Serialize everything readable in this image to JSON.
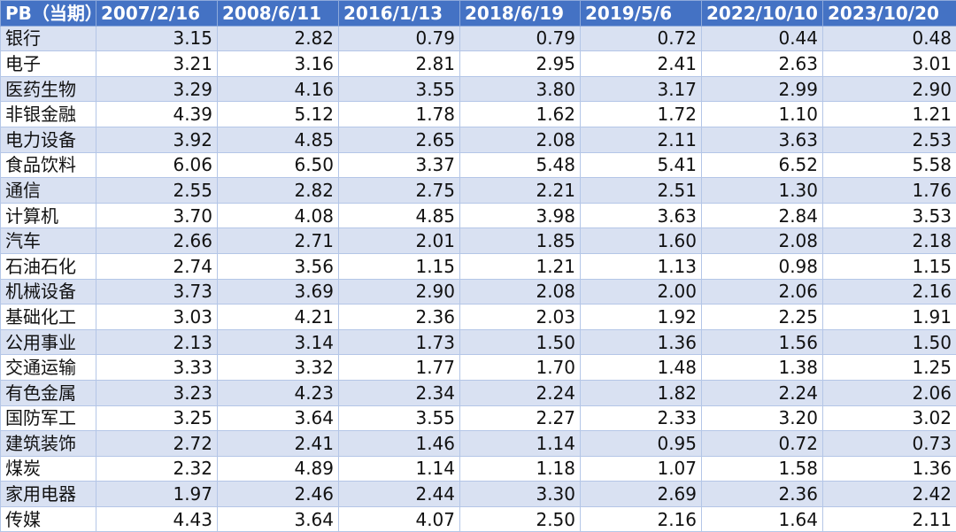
{
  "table": {
    "header": [
      "PB（当期）",
      "2007/2/16",
      "2008/6/11",
      "2016/1/13",
      "2018/6/19",
      "2019/5/6",
      "2022/10/10",
      "2023/10/20"
    ],
    "rows": [
      [
        "银行",
        "3.15",
        "2.82",
        "0.79",
        "0.79",
        "0.72",
        "0.44",
        "0.48"
      ],
      [
        "电子",
        "3.21",
        "3.16",
        "2.81",
        "2.95",
        "2.41",
        "2.63",
        "3.01"
      ],
      [
        "医药生物",
        "3.29",
        "4.16",
        "3.55",
        "3.80",
        "3.17",
        "2.99",
        "2.90"
      ],
      [
        "非银金融",
        "4.39",
        "5.12",
        "1.78",
        "1.62",
        "1.72",
        "1.10",
        "1.21"
      ],
      [
        "电力设备",
        "3.92",
        "4.85",
        "2.65",
        "2.08",
        "2.11",
        "3.63",
        "2.53"
      ],
      [
        "食品饮料",
        "6.06",
        "6.50",
        "3.37",
        "5.48",
        "5.41",
        "6.52",
        "5.58"
      ],
      [
        "通信",
        "2.55",
        "2.82",
        "2.75",
        "2.21",
        "2.51",
        "1.30",
        "1.76"
      ],
      [
        "计算机",
        "3.70",
        "4.08",
        "4.85",
        "3.98",
        "3.63",
        "2.84",
        "3.53"
      ],
      [
        "汽车",
        "2.66",
        "2.71",
        "2.01",
        "1.85",
        "1.60",
        "2.08",
        "2.18"
      ],
      [
        "石油石化",
        "2.74",
        "3.56",
        "1.15",
        "1.21",
        "1.13",
        "0.98",
        "1.15"
      ],
      [
        "机械设备",
        "3.73",
        "3.69",
        "2.90",
        "2.08",
        "2.00",
        "2.06",
        "2.16"
      ],
      [
        "基础化工",
        "3.03",
        "4.21",
        "2.36",
        "2.03",
        "1.92",
        "2.25",
        "1.91"
      ],
      [
        "公用事业",
        "2.13",
        "3.14",
        "1.73",
        "1.50",
        "1.36",
        "1.56",
        "1.50"
      ],
      [
        "交通运输",
        "3.33",
        "3.32",
        "1.77",
        "1.70",
        "1.48",
        "1.38",
        "1.25"
      ],
      [
        "有色金属",
        "3.23",
        "4.23",
        "2.34",
        "2.24",
        "1.82",
        "2.24",
        "2.06"
      ],
      [
        "国防军工",
        "3.25",
        "3.64",
        "3.55",
        "2.27",
        "2.33",
        "3.20",
        "3.02"
      ],
      [
        "建筑装饰",
        "2.72",
        "2.41",
        "1.46",
        "1.14",
        "0.95",
        "0.72",
        "0.73"
      ],
      [
        "煤炭",
        "2.32",
        "4.89",
        "1.14",
        "1.18",
        "1.07",
        "1.58",
        "1.36"
      ],
      [
        "家用电器",
        "1.97",
        "2.46",
        "2.44",
        "3.30",
        "2.69",
        "2.36",
        "2.42"
      ],
      [
        "传媒",
        "4.43",
        "3.64",
        "4.07",
        "2.50",
        "2.16",
        "1.64",
        "2.11"
      ]
    ]
  }
}
